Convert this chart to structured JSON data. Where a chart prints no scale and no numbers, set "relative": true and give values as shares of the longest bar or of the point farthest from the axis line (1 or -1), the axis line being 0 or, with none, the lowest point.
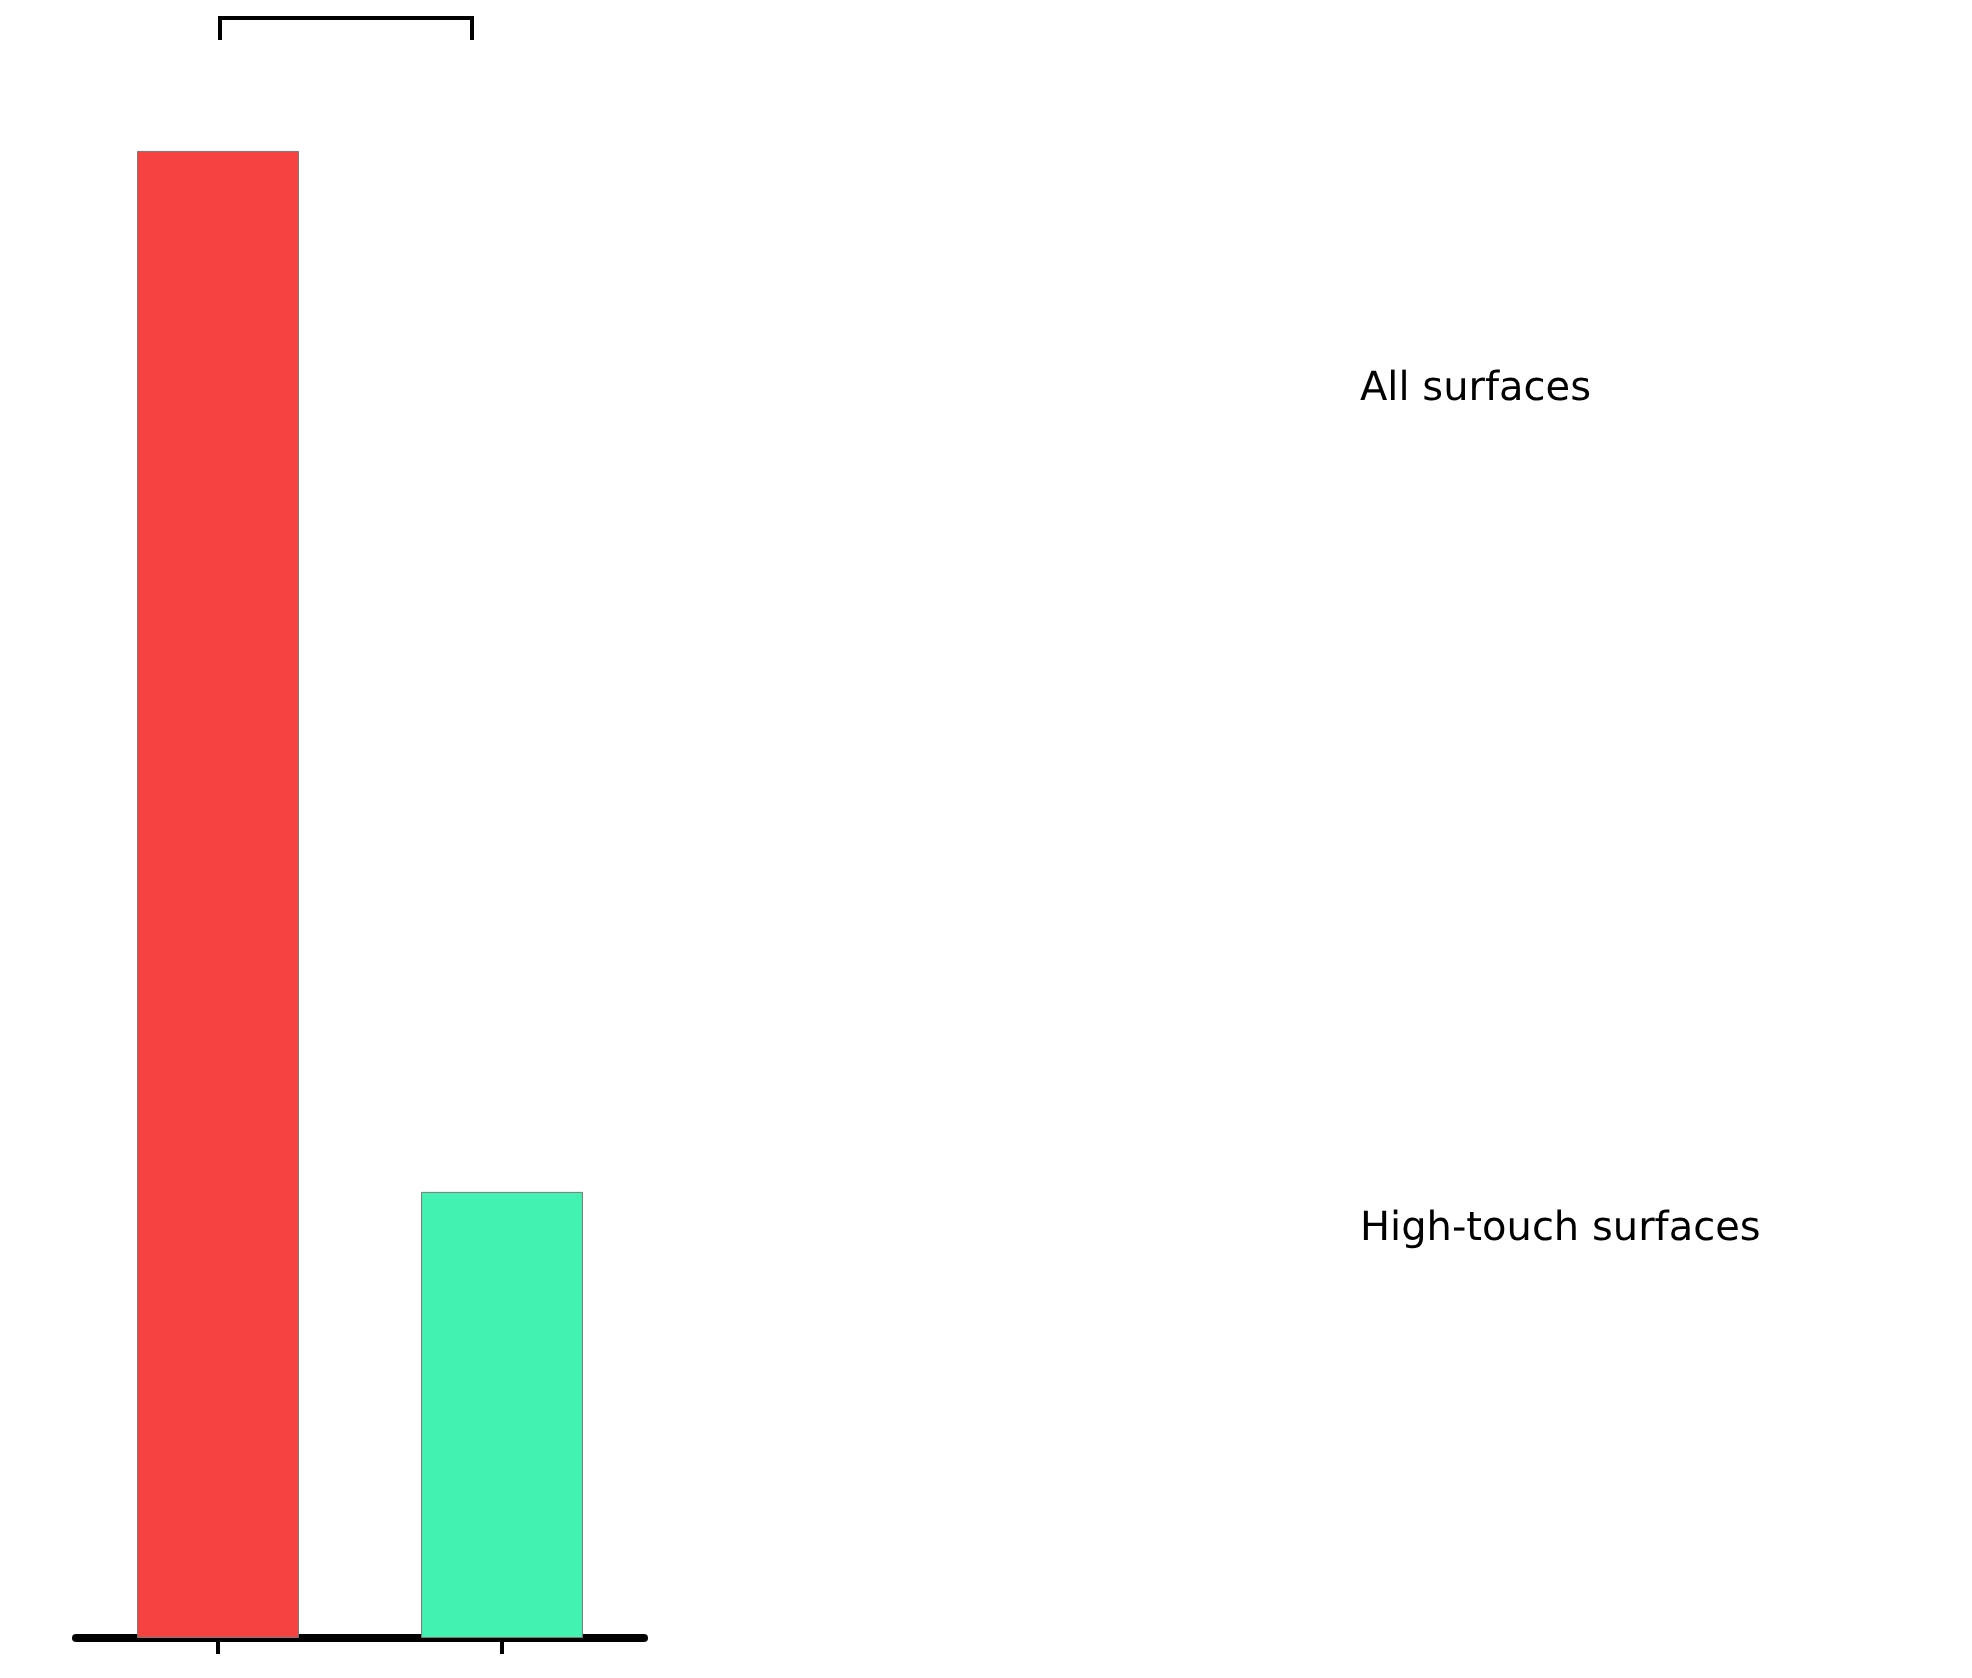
{
  "chart_data": {
    "type": "bar",
    "relative": true,
    "categories": [
      null,
      null
    ],
    "series": [
      {
        "colors": [
          "#f74242",
          "#42f2b0"
        ],
        "values": [
          1,
          0.3
        ]
      }
    ],
    "annotations": [
      "All surfaces",
      "High-touch surfaces"
    ]
  }
}
